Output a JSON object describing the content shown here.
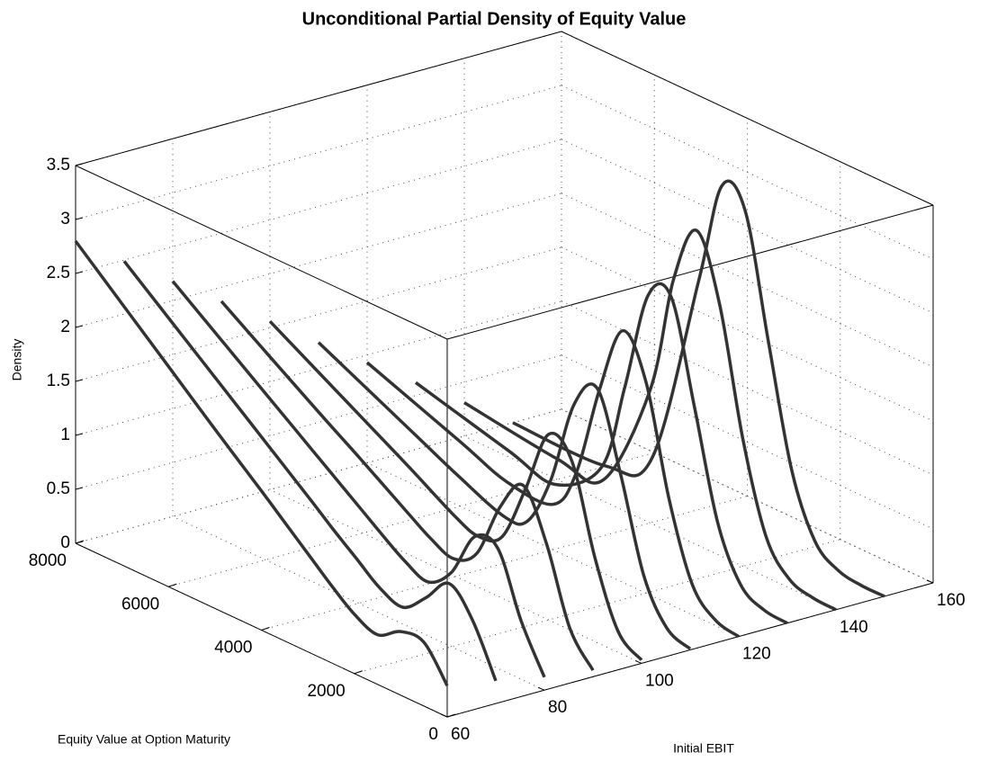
{
  "chart_data": {
    "type": "line3d",
    "title": "Unconditional Partial Density of Equity Value",
    "xlabel": "Initial EBIT",
    "ylabel": "Equity Value at Option Maturity",
    "zlabel": "Density",
    "xlim": [
      60,
      160
    ],
    "xticks": [
      60,
      80,
      100,
      120,
      140,
      160
    ],
    "ylim": [
      0,
      8000
    ],
    "yticks": [
      0,
      2000,
      4000,
      6000,
      8000
    ],
    "zlim": [
      0,
      3.5
    ],
    "zticks": [
      0,
      0.5,
      1,
      1.5,
      2,
      2.5,
      3,
      3.5
    ],
    "grid": true,
    "color": "#333333",
    "equity": [
      0,
      500,
      1000,
      1500,
      2000,
      2500,
      3000,
      3500,
      4000,
      5000,
      6000,
      8000
    ],
    "series": [
      {
        "ebit": 60,
        "values": [
          0.29,
          0.59,
          0.59,
          0.46,
          0.55,
          0.72,
          0.91,
          1.1,
          1.29,
          1.66,
          2.04,
          2.8
        ]
      },
      {
        "ebit": 70,
        "values": [
          0.21,
          0.67,
          0.91,
          0.68,
          0.49,
          0.57,
          0.74,
          0.91,
          1.09,
          1.44,
          1.79,
          2.49
        ]
      },
      {
        "ebit": 80,
        "values": [
          0.12,
          0.54,
          1.11,
          1.12,
          0.69,
          0.5,
          0.59,
          0.74,
          0.9,
          1.22,
          1.54,
          2.18
        ]
      },
      {
        "ebit": 90,
        "values": [
          0.06,
          0.35,
          1.03,
          1.47,
          1.17,
          0.64,
          0.49,
          0.58,
          0.72,
          1.01,
          1.29,
          1.87
        ]
      },
      {
        "ebit": 100,
        "values": [
          0.03,
          0.19,
          0.77,
          1.57,
          1.72,
          1.11,
          0.57,
          0.47,
          0.55,
          0.81,
          1.06,
          1.56
        ]
      },
      {
        "ebit": 110,
        "values": [
          0.01,
          0.1,
          0.49,
          1.33,
          2.02,
          1.77,
          0.97,
          0.49,
          0.43,
          0.61,
          0.82,
          1.24
        ]
      },
      {
        "ebit": 120,
        "values": [
          0.0,
          0.05,
          0.28,
          0.97,
          1.96,
          2.33,
          1.68,
          0.81,
          0.42,
          0.43,
          0.6,
          0.93
        ]
      },
      {
        "ebit": 130,
        "values": [
          0.0,
          0.02,
          0.15,
          0.63,
          1.6,
          2.52,
          2.43,
          1.48,
          0.64,
          0.28,
          0.39,
          0.62
        ]
      },
      {
        "ebit": 140,
        "values": [
          0.0,
          0.01,
          0.08,
          0.37,
          1.17,
          2.32,
          2.91,
          2.35,
          1.23,
          0.2,
          0.19,
          0.31
        ]
      },
      {
        "ebit": 150,
        "values": [
          0.0,
          0.0,
          0.04,
          0.21,
          0.77,
          1.86,
          2.97,
          3.1,
          2.12,
          0.28,
          0.0,
          0.0
        ]
      }
    ]
  }
}
